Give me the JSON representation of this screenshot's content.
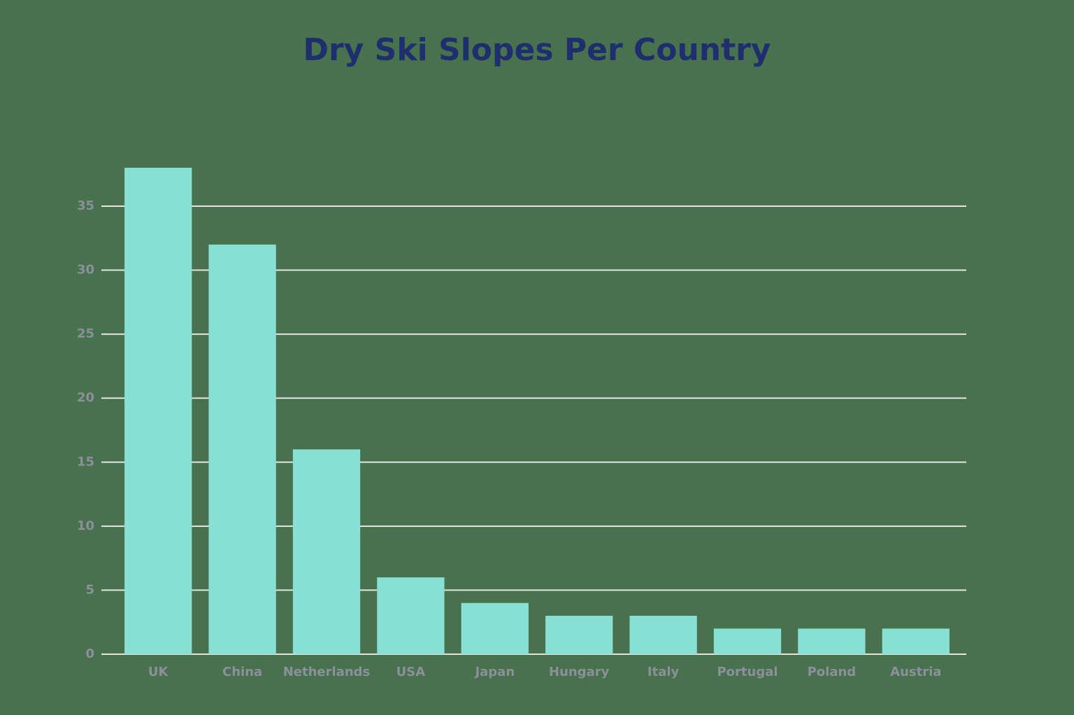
{
  "chart_data": {
    "type": "bar",
    "title": "Dry Ski Slopes Per Country",
    "categories": [
      "UK",
      "China",
      "Netherlands",
      "USA",
      "Japan",
      "Hungary",
      "Italy",
      "Portugal",
      "Poland",
      "Austria"
    ],
    "values": [
      38,
      32,
      16,
      6,
      4,
      3,
      3,
      2,
      2,
      2
    ],
    "color": "#88dfd4",
    "ylim": [
      0,
      38
    ],
    "yticks": [
      0,
      5,
      10,
      15,
      20,
      25,
      30,
      35
    ],
    "grid": true
  }
}
